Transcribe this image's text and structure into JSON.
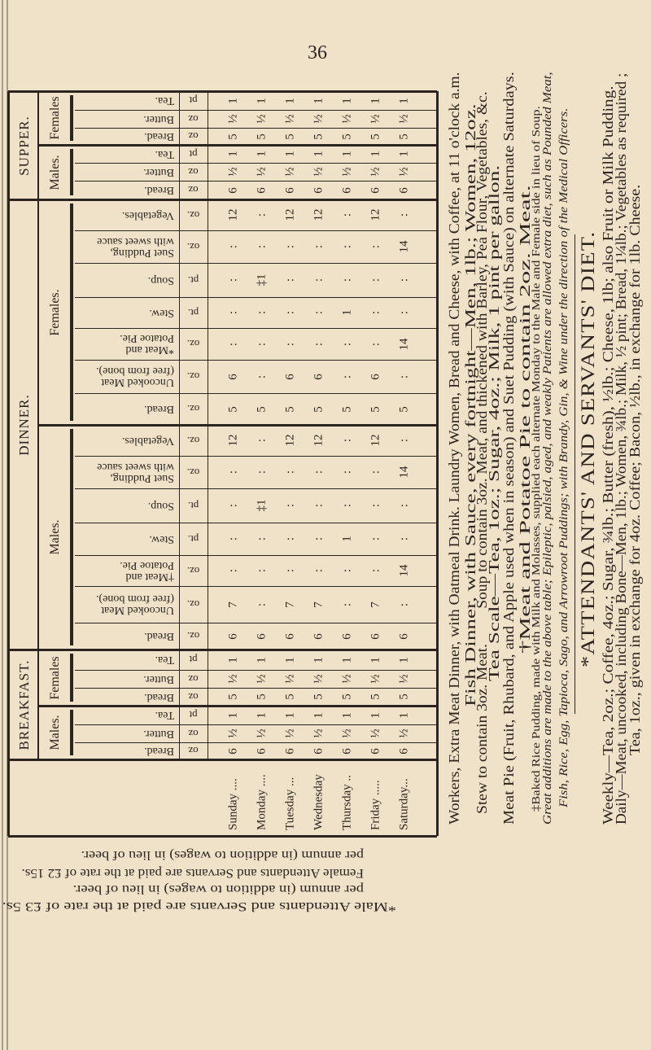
{
  "page_number": "36",
  "table": {
    "days": [
      "Sunday ....",
      "Monday ....",
      "Tuesday ...",
      "Wednesday",
      "Thursday ..",
      "Friday .....",
      "Saturday..."
    ],
    "sections": [
      {
        "name": "SUPPER.",
        "groups": [
          {
            "sex": "Females",
            "rows": [
              {
                "label": "Tea.",
                "unit": "pt",
                "values": [
                  "1",
                  "1",
                  "1",
                  "1",
                  "1",
                  "1",
                  "1"
                ]
              },
              {
                "label": "Butter.",
                "unit": "oz",
                "values": [
                  "½",
                  "½",
                  "½",
                  "½",
                  "½",
                  "½",
                  "½"
                ]
              },
              {
                "label": "Bread.",
                "unit": "oz",
                "values": [
                  "5",
                  "5",
                  "5",
                  "5",
                  "5",
                  "5",
                  "5"
                ]
              }
            ]
          },
          {
            "sex": "Males.",
            "rows": [
              {
                "label": "Tea.",
                "unit": "pt",
                "values": [
                  "1",
                  "1",
                  "1",
                  "1",
                  "1",
                  "1",
                  "1"
                ]
              },
              {
                "label": "Butter.",
                "unit": "oz",
                "values": [
                  "½",
                  "½",
                  "½",
                  "½",
                  "½",
                  "½",
                  "½"
                ]
              },
              {
                "label": "Bread.",
                "unit": "oz",
                "values": [
                  "6",
                  "6",
                  "6",
                  "6",
                  "6",
                  "6",
                  "6"
                ]
              }
            ]
          }
        ]
      },
      {
        "name": "DINNER.",
        "groups": [
          {
            "sex": "Females.",
            "rows": [
              {
                "label": "Vegetables.",
                "unit": "oz.",
                "values": [
                  "12",
                  ":",
                  "12",
                  "12",
                  ":",
                  "12",
                  ":"
                ]
              },
              {
                "label": "Suet Pudding,\nwith sweet sauce",
                "unit": "oz.",
                "values": [
                  ":",
                  ":",
                  ":",
                  ":",
                  ":",
                  ":",
                  "14"
                ]
              },
              {
                "label": "Soup.",
                "unit": "pt.",
                "values": [
                  ":",
                  "‡1",
                  ":",
                  ":",
                  ":",
                  ":",
                  ":"
                ]
              },
              {
                "label": "Stew.",
                "unit": "pt.",
                "values": [
                  ":",
                  ":",
                  ":",
                  ":",
                  "1",
                  ":",
                  ":"
                ]
              },
              {
                "label": "*Meat and\nPotatoe Pie.",
                "unit": "oz.",
                "values": [
                  ":",
                  ":",
                  ":",
                  ":",
                  ":",
                  ":",
                  "14"
                ]
              },
              {
                "label": "Uncooked Meat\n(free from bone).",
                "unit": "oz.",
                "values": [
                  "6",
                  ":",
                  "6",
                  "6",
                  ":",
                  "6",
                  ":"
                ]
              },
              {
                "label": "Bread.",
                "unit": "oz.",
                "values": [
                  "5",
                  "5",
                  "5",
                  "5",
                  "5",
                  "5",
                  "5"
                ]
              }
            ]
          },
          {
            "sex": "Males.",
            "rows": [
              {
                "label": "Vegetables.",
                "unit": "oz.",
                "values": [
                  "12",
                  ":",
                  "12",
                  "12",
                  ":",
                  "12",
                  ":"
                ]
              },
              {
                "label": "Suet Pudding,\nwith sweet sauce",
                "unit": "oz.",
                "values": [
                  ":",
                  ":",
                  ":",
                  ":",
                  ":",
                  ":",
                  "14"
                ]
              },
              {
                "label": "Soup.",
                "unit": "pt.",
                "values": [
                  ":",
                  "‡1",
                  ":",
                  ":",
                  ":",
                  ":",
                  ":"
                ]
              },
              {
                "label": "Stew.",
                "unit": "pt.",
                "values": [
                  ":",
                  ":",
                  ":",
                  ":",
                  "1",
                  ":",
                  ":"
                ]
              },
              {
                "label": "†Meat and\nPotatoe Pie.",
                "unit": "oz.",
                "values": [
                  ":",
                  ":",
                  ":",
                  ":",
                  ":",
                  ":",
                  "14"
                ]
              },
              {
                "label": "Uncooked Meat\n(free from bone).",
                "unit": "oz.",
                "values": [
                  "7",
                  ":",
                  "7",
                  "7",
                  ":",
                  "7",
                  ":"
                ]
              },
              {
                "label": "Bread.",
                "unit": "oz.",
                "values": [
                  "6",
                  "6",
                  "6",
                  "6",
                  "6",
                  "6",
                  "6"
                ]
              }
            ]
          }
        ]
      },
      {
        "name": "BREAKFAST.",
        "groups": [
          {
            "sex": "Females",
            "rows": [
              {
                "label": "Tea.",
                "unit": "pt",
                "values": [
                  "1",
                  "1",
                  "1",
                  "1",
                  "1",
                  "1",
                  "1"
                ]
              },
              {
                "label": "Butter.",
                "unit": "oz",
                "values": [
                  "½",
                  "½",
                  "½",
                  "½",
                  "½",
                  "½",
                  "½"
                ]
              },
              {
                "label": "Bread.",
                "unit": "oz",
                "values": [
                  "5",
                  "5",
                  "5",
                  "5",
                  "5",
                  "5",
                  "5"
                ]
              }
            ]
          },
          {
            "sex": "Males.",
            "rows": [
              {
                "label": "Tea.",
                "unit": "pt",
                "values": [
                  "1",
                  "1",
                  "1",
                  "1",
                  "1",
                  "1",
                  "1"
                ]
              },
              {
                "label": "Butter.",
                "unit": "oz",
                "values": [
                  "½",
                  "½",
                  "½",
                  "½",
                  "½",
                  "½",
                  "½"
                ]
              },
              {
                "label": "Bread.",
                "unit": "oz",
                "values": [
                  "6",
                  "6",
                  "6",
                  "6",
                  "6",
                  "6",
                  "6"
                ]
              }
            ]
          }
        ]
      }
    ]
  },
  "notes": {
    "workers": "Workers, Extra Meat Dinner, with Oatmeal Drink.  Laundry Women, Bread and Cheese, with Coffee, at 11 o'clock a.m.",
    "fish": "Fish Dinner, with Sauce, every fortnight—Men, 1lb.; Women, 12oz.",
    "stew": "Stew to contain 3oz. Meat.",
    "soup": "Soup to contain 3oz. Meat, and thickened with Barley, Pea Flour, Vegetables, &c.",
    "tea_scale": "Tea Scale—Tea, 1oz.; Sugar, 4oz.; Milk, 1 pint per gallon.",
    "meat_pie": "Meat Pie (Fruit, Rhubard, and Apple used when in season) and Suet Pudding (with Sauce) on alternate Saturdays.",
    "potatoe_pie": "†Meat and Potatoe Pie to contain 2oz. Meat.",
    "rice_pudding": "‡Baked Rice Pudding, made with Milk and Molasses, supplied each alternate Monday to the Male and Female side in lieu of Soup.",
    "additions_1": "Great additions are made to the above table; Epileptic, palsied, aged, and weakly Patients are allowed extra diet, such as Pounded Meat,",
    "additions_2": "Fish, Rice, Egg, Tapioca, Sago, and Arrowroot Puddings; with Brandy, Gin, & Wine under the direction of the Medical Officers."
  },
  "attendants": {
    "heading": "*ATTENDANTS' AND SERVANTS' DIET.",
    "weekly": "Weekly—Tea, 2oz.; Coffee, 4oz.; Sugar, ¾lb.; Butter (fresh), ½lb.; Cheese, 1lb; also Fruit or Milk Pudding.",
    "daily": "Daily—Meat, uncooked, including Bone—Men, 1lb.; Women, ¾lb.; Milk, ½ pint; Bread, 1¼lb.; Vegetables as required ;",
    "exchange": "Tea, 1oz., given in exchange for 4oz. Coffee; Bacon, ½lb., in exchange for 1lb. Cheese."
  },
  "footnotes": [
    "*Male Attendants and Servants are paid at the rate of £3 5s.",
    "per annum (in addition to wages) in lieu of beer.",
    "Female Attendants and Servants are paid at the rate of £2 15s.",
    "per annum (in addition to wages) in lieu of beer."
  ],
  "colors": {
    "paper": "#efe2c9",
    "ink": "#2b2420"
  }
}
